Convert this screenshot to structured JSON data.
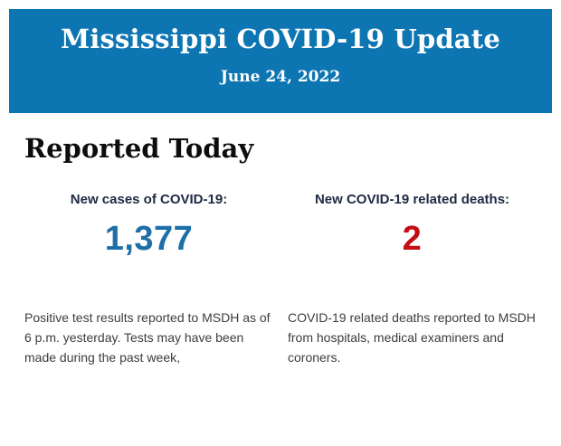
{
  "banner": {
    "title": "Mississippi COVID-19 Update",
    "date": "June 24, 2022",
    "bg_color": "#0d76b2",
    "text_color": "#ffffff"
  },
  "section": {
    "heading": "Reported Today"
  },
  "label_color": "#202a44",
  "stats": {
    "cases": {
      "label": "New cases of COVID-19:",
      "value": "1,377",
      "value_color": "#1e6fa8",
      "description": "Positive test results reported to MSDH as of 6 p.m. yesterday. Tests may have been made during the past week,"
    },
    "deaths": {
      "label": "New COVID-19 related deaths:",
      "value": "2",
      "value_color": "#c30e13",
      "description": "COVID-19 related deaths reported to MSDH from hospitals, medical examiners and coroners."
    }
  }
}
